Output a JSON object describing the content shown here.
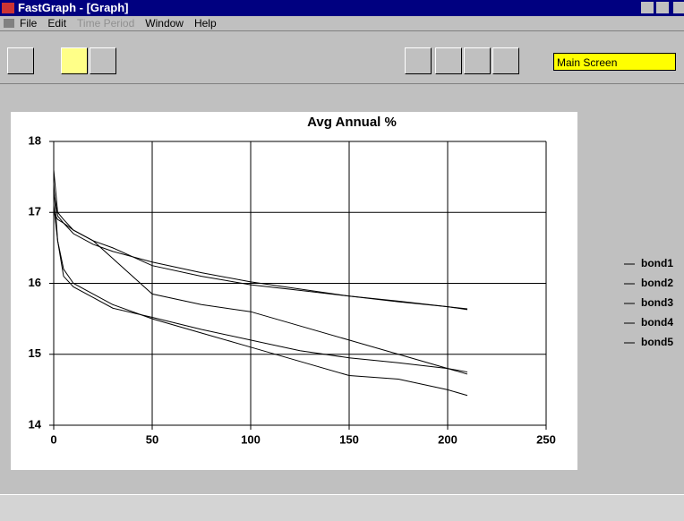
{
  "window": {
    "title": "FastGraph - [Graph]"
  },
  "menu": {
    "items": [
      "File",
      "Edit",
      "Time Period",
      "Window",
      "Help"
    ],
    "disabled": [
      "Time Period"
    ]
  },
  "toolbar": {
    "field": "Main Screen"
  },
  "chart_data": {
    "type": "line",
    "title": "Avg Annual %",
    "x": [
      0,
      2,
      5,
      10,
      20,
      30,
      50,
      75,
      100,
      125,
      150,
      175,
      200,
      210
    ],
    "series": [
      {
        "name": "bond1",
        "color": "#000000",
        "values": [
          17.3,
          16.95,
          16.85,
          16.7,
          16.55,
          16.45,
          16.3,
          16.15,
          16.02,
          15.92,
          15.82,
          15.74,
          15.67,
          15.64
        ]
      },
      {
        "name": "bond2",
        "color": "#000000",
        "values": [
          17.0,
          16.9,
          16.85,
          16.75,
          16.6,
          16.5,
          16.25,
          16.1,
          15.98,
          15.9,
          15.82,
          15.75,
          15.67,
          15.63
        ]
      },
      {
        "name": "bond3",
        "color": "#000000",
        "values": [
          17.6,
          17.0,
          16.9,
          16.75,
          16.6,
          16.35,
          15.85,
          15.7,
          15.6,
          15.4,
          15.2,
          15.0,
          14.8,
          14.72
        ]
      },
      {
        "name": "bond4",
        "color": "#000000",
        "values": [
          17.1,
          16.6,
          16.2,
          16.0,
          15.85,
          15.7,
          15.5,
          15.3,
          15.1,
          14.9,
          14.7,
          14.65,
          14.5,
          14.42
        ]
      },
      {
        "name": "bond5",
        "color": "#000000",
        "values": [
          17.4,
          16.6,
          16.1,
          15.95,
          15.8,
          15.65,
          15.52,
          15.35,
          15.2,
          15.05,
          14.95,
          14.88,
          14.8,
          14.75
        ]
      }
    ],
    "xlim": [
      0,
      250
    ],
    "xticks": [
      0,
      50,
      100,
      150,
      200,
      250
    ],
    "ylim": [
      14,
      18
    ],
    "yticks": [
      14,
      15,
      16,
      17,
      18
    ],
    "grid": true,
    "legend": "right"
  }
}
